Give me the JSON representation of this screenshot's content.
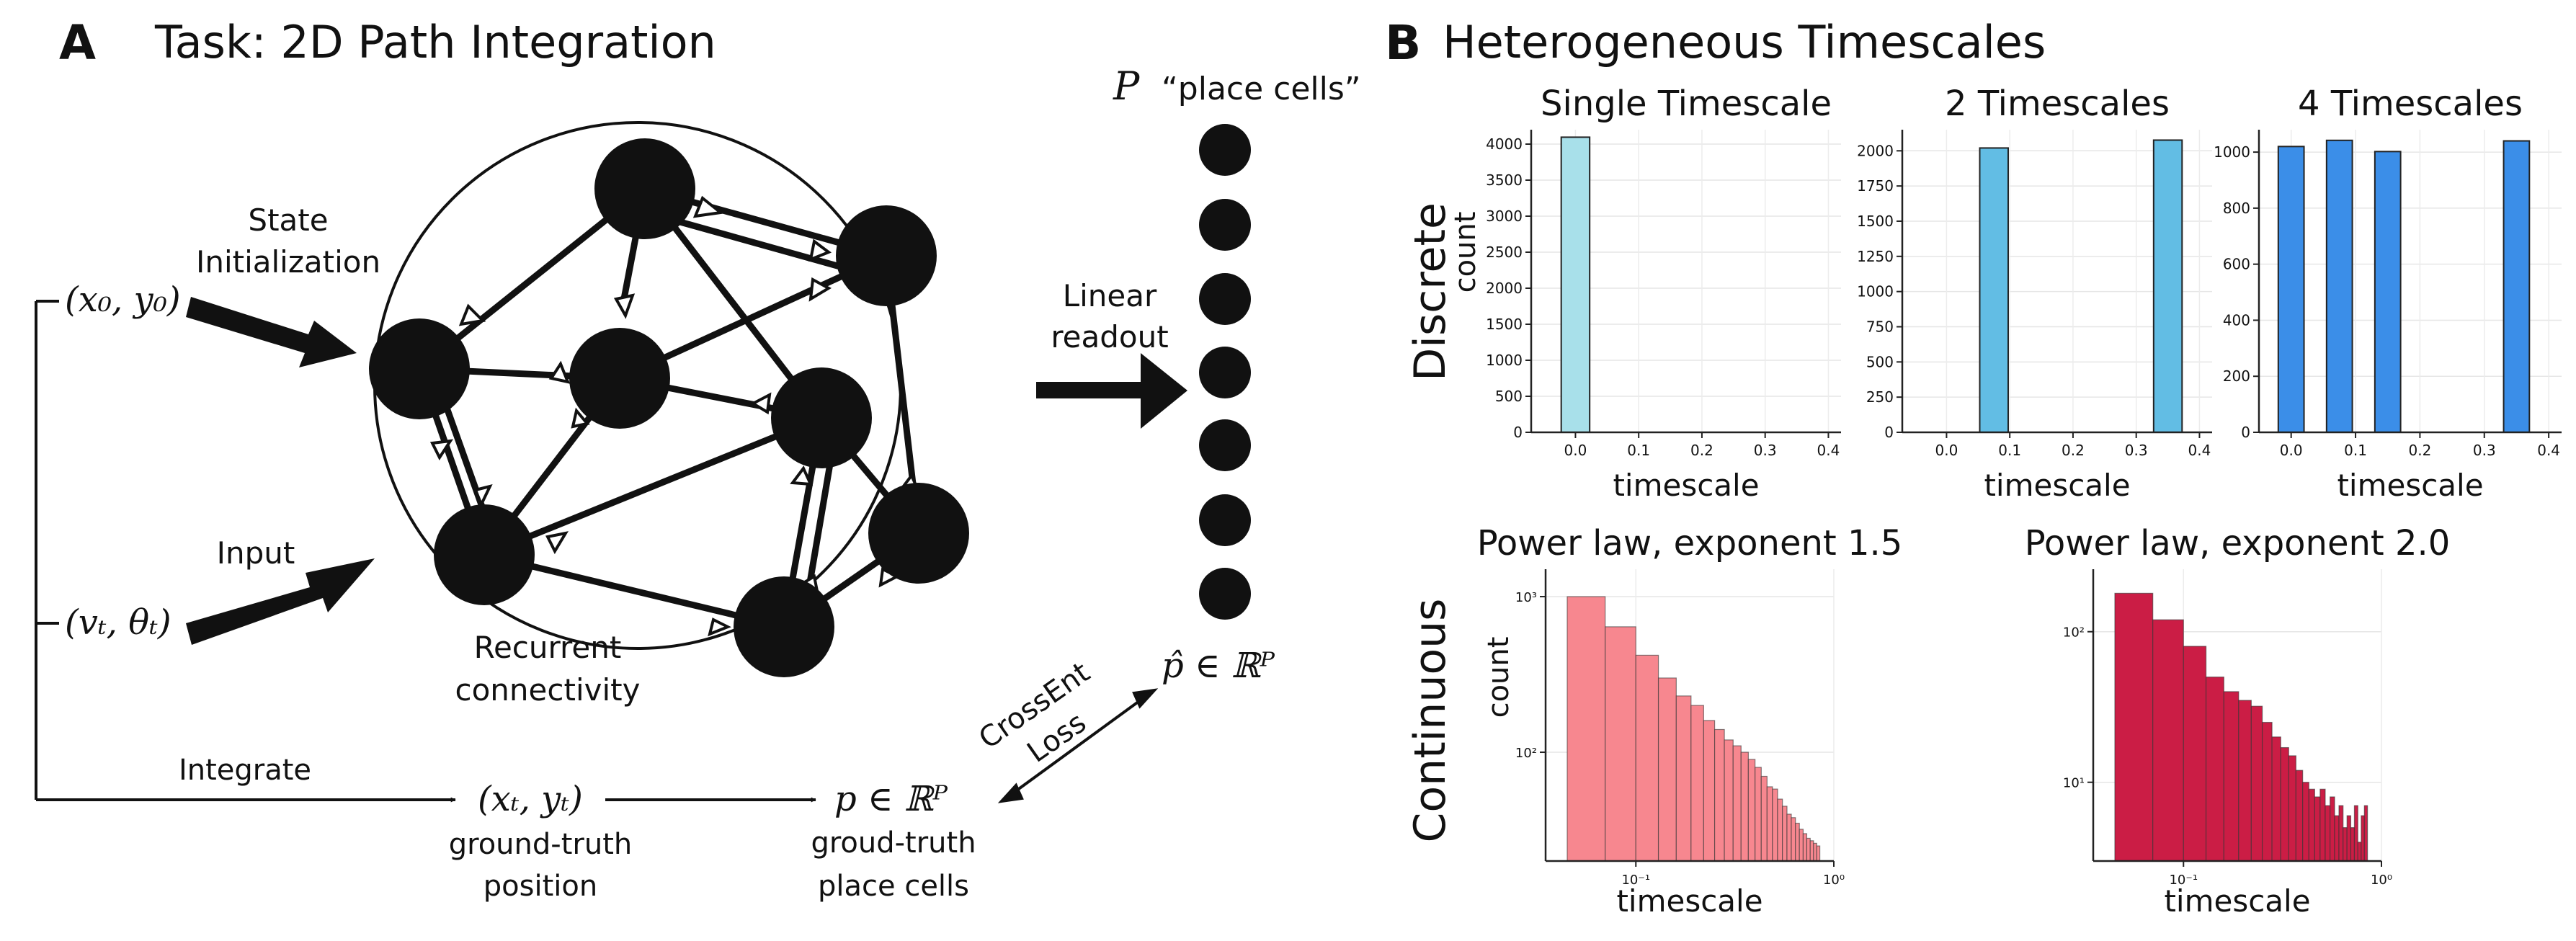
{
  "panel_a": {
    "letter": "A",
    "title": "Task: 2D Path Integration",
    "state_init_line1": "State",
    "state_init_line2": "Initialization",
    "init_pos": "(x₀, y₀)",
    "input_label": "Input",
    "input_vel": "(vₜ, θₜ)",
    "recurrent_line1": "Recurrent",
    "recurrent_line2": "connectivity",
    "linear_readout_line1": "Linear",
    "linear_readout_line2": "readout",
    "place_cells_symbol": "P",
    "place_cells_label": "“place cells”",
    "p_hat": "p̂ ∈ ℝᴾ",
    "loss_line1": "CrossEnt",
    "loss_line2": "Loss",
    "integrate_label": "Integrate",
    "gt_pos": "(xₜ, yₜ)",
    "gt_pos_line1": "ground-truth",
    "gt_pos_line2": "position",
    "p_true": "p ∈ ℝᴾ",
    "gt_cells_line1": "groud-truth",
    "gt_cells_line2": "place cells"
  },
  "panel_b": {
    "letter": "B",
    "title": "Heterogeneous Timescales",
    "row_discrete": "Discrete",
    "row_continuous": "Continuous"
  },
  "chart_data": [
    {
      "type": "bar",
      "title": "Single Timescale",
      "xlabel": "timescale",
      "ylabel": "count",
      "color": "#a8e0ea",
      "xlim": [
        -0.07,
        0.42
      ],
      "ylim": [
        0,
        4200
      ],
      "xticks": [
        "0.0",
        "0.1",
        "0.2",
        "0.3",
        "0.4"
      ],
      "xtick_values": [
        0.0,
        0.1,
        0.2,
        0.3,
        0.4
      ],
      "yticks": [
        "0",
        "500",
        "1000",
        "1500",
        "2000",
        "2500",
        "3000",
        "3500",
        "4000"
      ],
      "ytick_values": [
        0,
        500,
        1000,
        1500,
        2000,
        2500,
        3000,
        3500,
        4000
      ],
      "bars": [
        {
          "center": 0.0,
          "width": 0.045,
          "value": 4096
        }
      ]
    },
    {
      "type": "bar",
      "title": "2 Timescales",
      "xlabel": "timescale",
      "ylabel": "",
      "color": "#62bde4",
      "xlim": [
        -0.07,
        0.42
      ],
      "ylim": [
        0,
        2150
      ],
      "xticks": [
        "0.0",
        "0.1",
        "0.2",
        "0.3",
        "0.4"
      ],
      "xtick_values": [
        0.0,
        0.1,
        0.2,
        0.3,
        0.4
      ],
      "yticks": [
        "0",
        "250",
        "500",
        "750",
        "1000",
        "1250",
        "1500",
        "1750",
        "2000"
      ],
      "ytick_values": [
        0,
        250,
        500,
        750,
        1000,
        1250,
        1500,
        1750,
        2000
      ],
      "bars": [
        {
          "center": 0.075,
          "width": 0.045,
          "value": 2020
        },
        {
          "center": 0.35,
          "width": 0.045,
          "value": 2076
        }
      ]
    },
    {
      "type": "bar",
      "title": "4 Timescales",
      "xlabel": "timescale",
      "ylabel": "",
      "color": "#3b8ee8",
      "xlim": [
        -0.05,
        0.42
      ],
      "ylim": [
        0,
        1080
      ],
      "xticks": [
        "0.0",
        "0.1",
        "0.2",
        "0.3",
        "0.4"
      ],
      "xtick_values": [
        0.0,
        0.1,
        0.2,
        0.3,
        0.4
      ],
      "yticks": [
        "0",
        "200",
        "400",
        "600",
        "800",
        "1000"
      ],
      "ytick_values": [
        0,
        200,
        400,
        600,
        800,
        1000
      ],
      "bars": [
        {
          "center": 0.0,
          "width": 0.04,
          "value": 1020
        },
        {
          "center": 0.075,
          "width": 0.04,
          "value": 1042
        },
        {
          "center": 0.15,
          "width": 0.04,
          "value": 1002
        },
        {
          "center": 0.35,
          "width": 0.04,
          "value": 1040
        }
      ]
    },
    {
      "type": "bar",
      "title": "Power law, exponent 1.5",
      "xlabel": "timescale",
      "ylabel": "count",
      "color": "#f7878f",
      "xscale": "log",
      "yscale": "log",
      "xlim": [
        0.035,
        1.0
      ],
      "ylim": [
        20,
        1500
      ],
      "xticks": [
        "10⁻¹",
        "10⁰"
      ],
      "xtick_values": [
        0.1,
        1.0
      ],
      "yticks": [
        "10²",
        "10³"
      ],
      "ytick_values": [
        100,
        1000
      ],
      "bar_edges": [
        0.045,
        0.07,
        0.1,
        0.13,
        0.16,
        0.19,
        0.22,
        0.25,
        0.28,
        0.31,
        0.34,
        0.37,
        0.4,
        0.43,
        0.46,
        0.49,
        0.52,
        0.55,
        0.58,
        0.61,
        0.64,
        0.67,
        0.7,
        0.73,
        0.76,
        0.79,
        0.82,
        0.85
      ],
      "values": [
        1000,
        640,
        420,
        300,
        230,
        200,
        160,
        140,
        120,
        110,
        100,
        90,
        80,
        70,
        60,
        58,
        50,
        45,
        40,
        38,
        35,
        32,
        30,
        28,
        27,
        26,
        25
      ]
    },
    {
      "type": "bar",
      "title": "Power law, exponent 2.0",
      "xlabel": "timescale",
      "ylabel": "",
      "color": "#cb1d45",
      "xscale": "log",
      "yscale": "log",
      "xlim": [
        0.035,
        1.0
      ],
      "ylim": [
        3,
        260
      ],
      "xticks": [
        "10⁻¹",
        "10⁰"
      ],
      "xtick_values": [
        0.1,
        1.0
      ],
      "yticks": [
        "10¹",
        "10²"
      ],
      "ytick_values": [
        10,
        100
      ],
      "bar_edges": [
        0.045,
        0.07,
        0.1,
        0.13,
        0.16,
        0.19,
        0.22,
        0.25,
        0.28,
        0.31,
        0.34,
        0.37,
        0.4,
        0.43,
        0.46,
        0.49,
        0.52,
        0.55,
        0.58,
        0.61,
        0.64,
        0.67,
        0.7,
        0.73,
        0.76,
        0.79,
        0.82,
        0.85
      ],
      "values": [
        180,
        120,
        80,
        50,
        40,
        35,
        32,
        25,
        20,
        17,
        15,
        12,
        10,
        9,
        8,
        9,
        7,
        8,
        6,
        7,
        5,
        6,
        5,
        7,
        4,
        6,
        7
      ]
    }
  ]
}
